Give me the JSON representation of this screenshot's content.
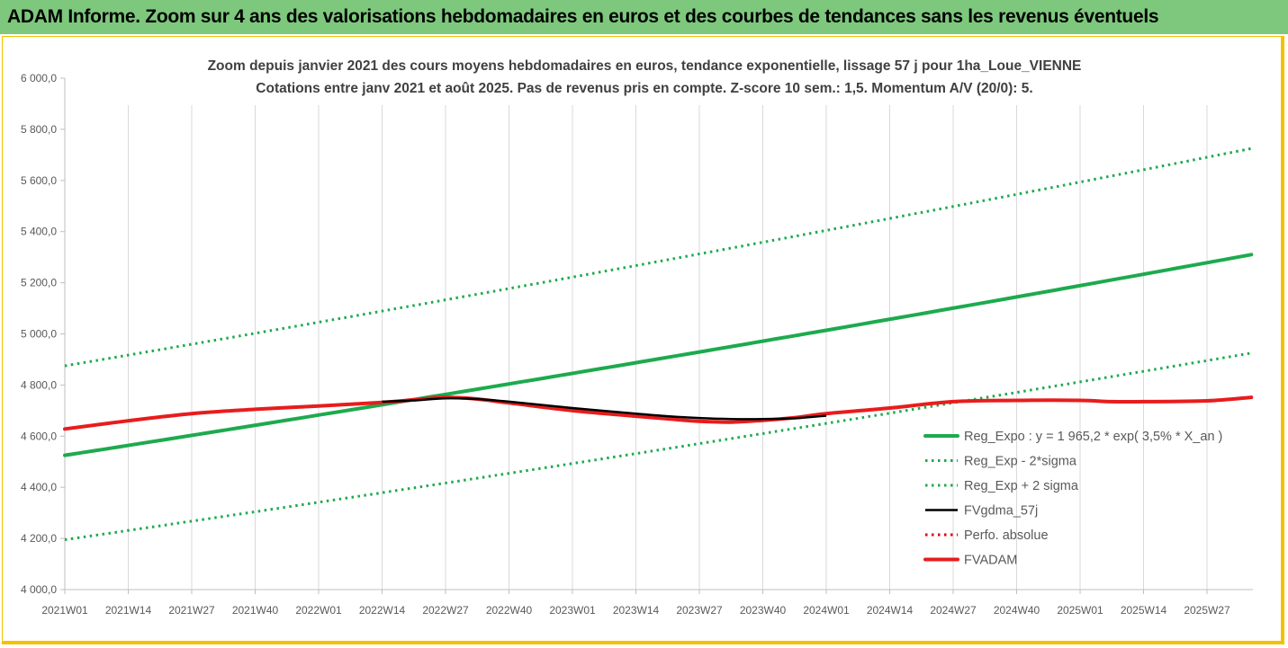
{
  "banner": {
    "title": "ADAM Informe. Zoom sur 4 ans des valorisations hebdomadaires en euros et des courbes de tendances sans les revenus éventuels"
  },
  "chart_data": {
    "type": "line",
    "title": "Zoom depuis janvier 2021 des cours moyens hebdomadaires en euros, tendance exponentielle, lissage 57 j pour 1ha_Loue_VIENNE",
    "subtitle": "Cotations entre janv 2021 et août 2025.  Pas de revenus pris en compte. Z-score 10 sem.: 1,5. Momentum A/V (20/0): 5.",
    "xlabel": "",
    "ylabel": "",
    "ylim": [
      4000,
      6000
    ],
    "y_ticks": [
      "4 000,0",
      "4 200,0",
      "4 400,0",
      "4 600,0",
      "4 800,0",
      "5 000,0",
      "5 200,0",
      "5 400,0",
      "5 600,0",
      "5 800,0",
      "6 000,0"
    ],
    "x_ticks": [
      "2021W01",
      "2021W14",
      "2021W27",
      "2021W40",
      "2022W01",
      "2022W14",
      "2022W27",
      "2022W40",
      "2023W01",
      "2023W14",
      "2023W27",
      "2023W40",
      "2024W01",
      "2024W14",
      "2024W27",
      "2024W40",
      "2025W01",
      "2025W14",
      "2025W27"
    ],
    "x_end_index": 18.7,
    "grid": {
      "x": true,
      "y": false
    },
    "legend_position": "bottom-right",
    "series": [
      {
        "name": "Reg_Expo : y = 1 965,2 * exp( 3,5% *  X_an )",
        "color": "#1daa4e",
        "style": "solid-thick",
        "x": [
          0,
          18.7
        ],
        "y": [
          4525,
          5310
        ],
        "curve": "exponential"
      },
      {
        "name": "Reg_Exp - 2*sigma",
        "color": "#1daa4e",
        "style": "dotted",
        "x": [
          0,
          18.7
        ],
        "y": [
          4195,
          4925
        ],
        "curve": "exponential"
      },
      {
        "name": "Reg_Exp + 2 sigma",
        "color": "#1daa4e",
        "style": "dotted",
        "x": [
          0,
          18.7
        ],
        "y": [
          4875,
          5725
        ],
        "curve": "exponential"
      },
      {
        "name": "FVgdma_57j",
        "color": "#000000",
        "style": "solid",
        "x": [
          5,
          5.5,
          6,
          6.5,
          7,
          8,
          9,
          9.5,
          10,
          10.5,
          11,
          11.5,
          12
        ],
        "y": [
          4735,
          4740,
          4748,
          4745,
          4735,
          4710,
          4688,
          4678,
          4671,
          4667,
          4667,
          4670,
          4680
        ]
      },
      {
        "name": "Perfo. absolue",
        "color": "#e00000",
        "style": "dotted",
        "x": [
          0,
          1,
          2,
          3,
          4,
          5,
          5.5,
          6,
          6.5,
          7,
          8,
          9,
          9.5,
          10,
          10.5,
          11,
          11.5,
          12,
          13,
          14,
          15,
          16,
          16.5,
          17,
          18,
          18.7
        ],
        "y": [
          4628,
          4660,
          4688,
          4705,
          4718,
          4732,
          4742,
          4752,
          4745,
          4730,
          4700,
          4678,
          4668,
          4658,
          4655,
          4662,
          4672,
          4688,
          4710,
          4735,
          4740,
          4740,
          4735,
          4735,
          4738,
          4752
        ]
      },
      {
        "name": "FVADAM",
        "color": "#e81c1c",
        "style": "solid-thick",
        "x": [
          0,
          1,
          2,
          3,
          4,
          5,
          5.5,
          6,
          6.5,
          7,
          8,
          9,
          9.5,
          10,
          10.5,
          11,
          11.5,
          12,
          13,
          14,
          15,
          16,
          16.5,
          17,
          18,
          18.7
        ],
        "y": [
          4628,
          4660,
          4688,
          4705,
          4718,
          4732,
          4742,
          4752,
          4745,
          4730,
          4700,
          4678,
          4668,
          4658,
          4655,
          4662,
          4672,
          4688,
          4710,
          4735,
          4740,
          4740,
          4735,
          4735,
          4738,
          4752
        ]
      }
    ]
  }
}
